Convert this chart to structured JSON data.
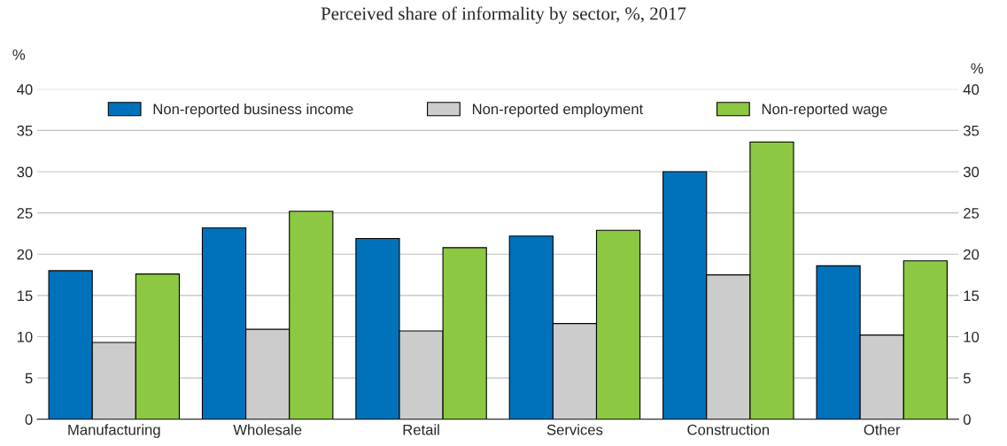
{
  "chart_data": {
    "type": "bar",
    "title": "Perceived share of informality by sector, %, 2017",
    "ylabel": "%",
    "y2label": "%",
    "categories": [
      "Manufacturing",
      "Wholesale",
      "Retail",
      "Services",
      "Construction",
      "Other"
    ],
    "series": [
      {
        "name": "Non-reported business income",
        "color": "#0072bc",
        "values": [
          18.0,
          23.2,
          21.9,
          22.2,
          30.0,
          18.6
        ]
      },
      {
        "name": "Non-reported employment",
        "color": "#cccccc",
        "values": [
          9.3,
          10.9,
          10.7,
          11.6,
          17.5,
          10.2
        ]
      },
      {
        "name": "Non-reported wage",
        "color": "#8cc841",
        "values": [
          17.6,
          25.2,
          20.8,
          22.9,
          33.6,
          19.2
        ]
      }
    ],
    "ylim": [
      0,
      40
    ],
    "yticks": [
      0,
      5,
      10,
      15,
      20,
      25,
      30,
      35,
      40
    ],
    "y2lim": [
      0,
      40
    ],
    "y2ticks": [
      0,
      5,
      10,
      15,
      20,
      25,
      30,
      35,
      40
    ],
    "grid": "y",
    "legend": "top"
  }
}
